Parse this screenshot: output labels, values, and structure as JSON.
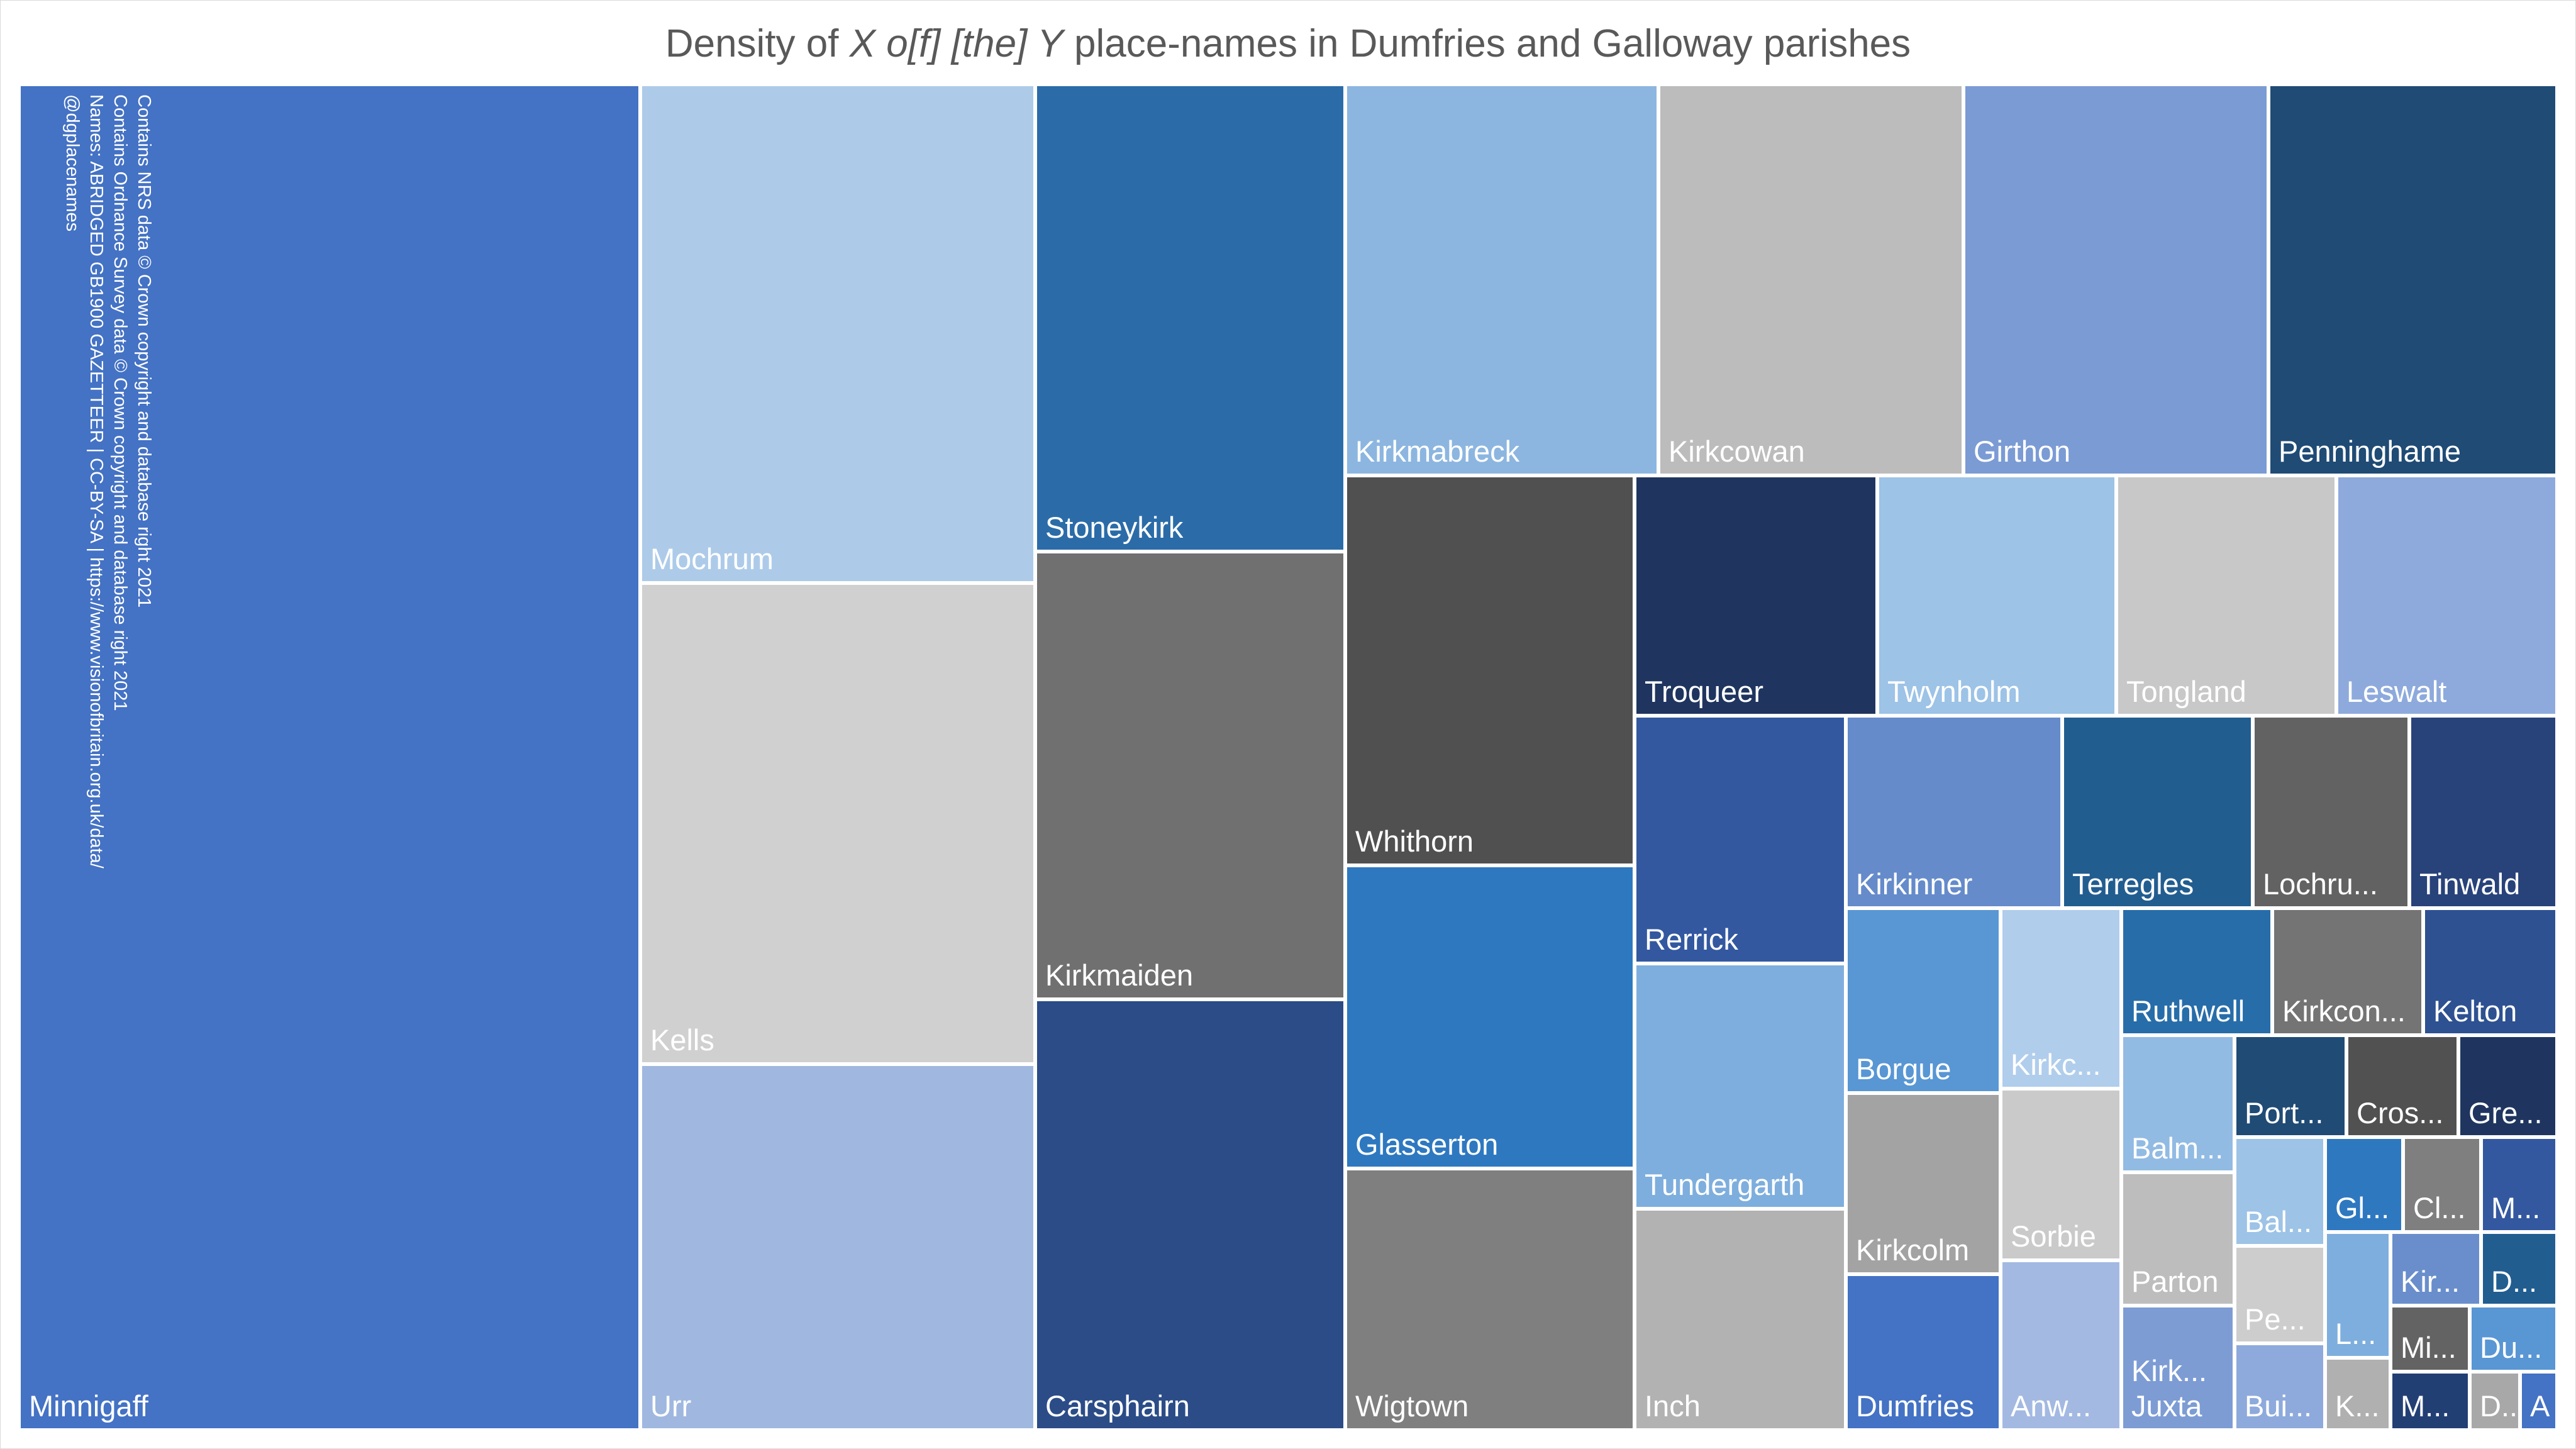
{
  "chart_data": {
    "type": "treemap",
    "title": {
      "before": "Density of ",
      "italic1": "X o[f] [the] Y",
      "after": " place-names in Dumfries and Galloway parishes"
    },
    "credits": [
      "Contains NRS data © Crown copyright and database right 2021",
      "Contains Ordnance Survey data © Crown copyright and database right 2021",
      "Names: ABRIDGED GB1900 GAZETTEER | CC-BY-SA | https://www.visionofbritain.org.uk/data/",
      "@dgplacenames"
    ],
    "tiles": [
      {
        "label": "Minnigaff",
        "value": 25.3,
        "color": "#4472c4",
        "text": "#ffffff"
      },
      {
        "label": "Mochrum",
        "value": 6.2,
        "color": "#adcbe9",
        "text": "#ffffff"
      },
      {
        "label": "Kells",
        "value": 6.0,
        "color": "#d0d0d0",
        "text": "#ffffff"
      },
      {
        "label": "Urr",
        "value": 4.6,
        "color": "#a0b8e0",
        "text": "#ffffff"
      },
      {
        "label": "Stoneykirk",
        "value": 3.6,
        "color": "#2b6ca8",
        "text": "#ffffff"
      },
      {
        "label": "Kirkmaiden",
        "value": 3.4,
        "color": "#707070",
        "text": "#ffffff"
      },
      {
        "label": "Carsphairn",
        "value": 3.3,
        "color": "#2b4c87",
        "text": "#ffffff"
      },
      {
        "label": "Kirkmabreck",
        "value": 2.35,
        "color": "#8cb6e0",
        "text": "#ffffff"
      },
      {
        "label": "Kirkcowan",
        "value": 2.3,
        "color": "#bcbcbc",
        "text": "#ffffff"
      },
      {
        "label": "Girthon",
        "value": 2.28,
        "color": "#7b9bd4",
        "text": "#ffffff"
      },
      {
        "label": "Penninghame",
        "value": 2.27,
        "color": "#1f4b75",
        "text": "#ffffff"
      },
      {
        "label": "Whithorn",
        "value": 2.7,
        "color": "#505050",
        "text": "#ffffff"
      },
      {
        "label": "Troqueer",
        "value": 2.1,
        "color": "#1f355f",
        "text": "#ffffff"
      },
      {
        "label": "Twynholm",
        "value": 2.1,
        "color": "#9dc3e6",
        "text": "#ffffff"
      },
      {
        "label": "Tongland",
        "value": 1.4,
        "color": "#c8c8c8",
        "text": "#ffffff"
      },
      {
        "label": "Leswalt",
        "value": 1.35,
        "color": "#8eaadc",
        "text": "#ffffff"
      },
      {
        "label": "Glasserton",
        "value": 1.3,
        "color": "#2e78c0",
        "text": "#ffffff"
      },
      {
        "label": "Wigtown",
        "value": 1.3,
        "color": "#7f7f7f",
        "text": "#ffffff"
      },
      {
        "label": "Rerrick",
        "value": 1.2,
        "color": "#3358a0",
        "text": "#ffffff"
      },
      {
        "label": "Tundergarth",
        "value": 1.1,
        "color": "#7eaedd",
        "text": "#ffffff"
      },
      {
        "label": "Inch",
        "value": 1.05,
        "color": "#b2b2b2",
        "text": "#ffffff"
      },
      {
        "label": "Kirkinner",
        "value": 0.95,
        "color": "#658bca",
        "text": "#ffffff"
      },
      {
        "label": "Terregles",
        "value": 0.88,
        "color": "#225d90",
        "text": "#ffffff"
      },
      {
        "label": "Lochru...",
        "value": 0.78,
        "color": "#626262",
        "text": "#ffffff"
      },
      {
        "label": "Tinwald",
        "value": 0.76,
        "color": "#28427a",
        "text": "#ffffff"
      },
      {
        "label": "Borgue",
        "value": 0.74,
        "color": "#5996d4",
        "text": "#ffffff"
      },
      {
        "label": "Kirkcolm",
        "value": 0.71,
        "color": "#a3a3a3",
        "text": "#ffffff"
      },
      {
        "label": "Dumfries",
        "value": 0.64,
        "color": "#4472c4",
        "text": "#ffffff"
      },
      {
        "label": "Kirkc...",
        "value": 0.5,
        "color": "#b0cdec",
        "text": "#ffffff"
      },
      {
        "label": "Sorbie",
        "value": 0.5,
        "color": "#cacaca",
        "text": "#ffffff"
      },
      {
        "label": "Anw...",
        "value": 0.48,
        "color": "#a3b9e1",
        "text": "#ffffff"
      },
      {
        "label": "Ruthwell",
        "value": 0.42,
        "color": "#276da9",
        "text": "#ffffff"
      },
      {
        "label": "Kirkcon...",
        "value": 0.42,
        "color": "#747474",
        "text": "#ffffff"
      },
      {
        "label": "Kelton",
        "value": 0.37,
        "color": "#2d5191",
        "text": "#ffffff"
      },
      {
        "label": "Balm...",
        "value": 0.34,
        "color": "#92bbe3",
        "text": "#ffffff"
      },
      {
        "label": "Parton",
        "value": 0.34,
        "color": "#bdbdbd",
        "text": "#ffffff"
      },
      {
        "label": "Kirk... Juxta",
        "value": 0.33,
        "color": "#7d9cd4",
        "text": "#ffffff"
      },
      {
        "label": "Port...",
        "value": 0.22,
        "color": "#1f4b75",
        "text": "#ffffff"
      },
      {
        "label": "Cros...",
        "value": 0.2,
        "color": "#515151",
        "text": "#ffffff"
      },
      {
        "label": "Gre...",
        "value": 0.17,
        "color": "#1f355f",
        "text": "#ffffff"
      },
      {
        "label": "Bal...",
        "value": 0.2,
        "color": "#9dc3e6",
        "text": "#ffffff"
      },
      {
        "label": "Pe...",
        "value": 0.16,
        "color": "#cdcdcd",
        "text": "#ffffff"
      },
      {
        "label": "Bui...",
        "value": 0.13,
        "color": "#8eaadc",
        "text": "#ffffff"
      },
      {
        "label": "Gl...",
        "value": 0.1,
        "color": "#2e78c0",
        "text": "#ffffff"
      },
      {
        "label": "Cl...",
        "value": 0.09,
        "color": "#7f7f7f",
        "text": "#ffffff"
      },
      {
        "label": "M...",
        "value": 0.08,
        "color": "#3358a0",
        "text": "#ffffff"
      },
      {
        "label": "L...",
        "value": 0.11,
        "color": "#7eaedd",
        "text": "#ffffff"
      },
      {
        "label": "K...",
        "value": 0.09,
        "color": "#b0b0b0",
        "text": "#ffffff"
      },
      {
        "label": "Kir...",
        "value": 0.08,
        "color": "#6a8ecb",
        "text": "#ffffff"
      },
      {
        "label": "D...",
        "value": 0.07,
        "color": "#225d90",
        "text": "#ffffff"
      },
      {
        "label": "Mi...",
        "value": 0.06,
        "color": "#636363",
        "text": "#ffffff"
      },
      {
        "label": "Du...",
        "value": 0.05,
        "color": "#5996d4",
        "text": "#ffffff"
      },
      {
        "label": "M...",
        "value": 0.05,
        "color": "#223f74",
        "text": "#ffffff"
      },
      {
        "label": "D...",
        "value": 0.04,
        "color": "#a8a8a8",
        "text": "#ffffff"
      },
      {
        "label": "A",
        "value": 0.03,
        "color": "#4472c4",
        "text": "#ffffff"
      }
    ]
  }
}
